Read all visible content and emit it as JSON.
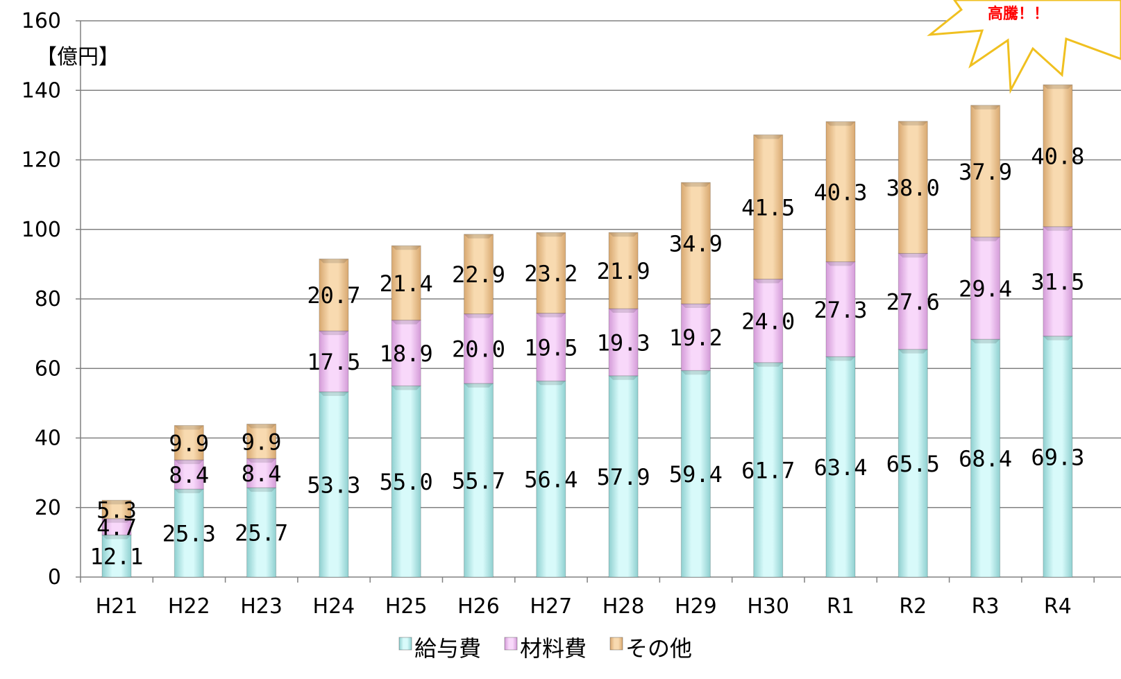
{
  "chart_data": {
    "type": "bar",
    "stacked": true,
    "unit_label": "【億円】",
    "categories": [
      "H21",
      "H22",
      "H23",
      "H24",
      "H25",
      "H26",
      "H27",
      "H28",
      "H29",
      "H30",
      "R1",
      "R2",
      "R3",
      "R4"
    ],
    "series": [
      {
        "name": "給与費",
        "color": "#c8f4f4",
        "values": [
          12.1,
          25.3,
          25.7,
          53.3,
          55.0,
          55.7,
          56.4,
          57.9,
          59.4,
          61.7,
          63.4,
          65.5,
          68.4,
          69.3
        ],
        "labels": [
          "12.1",
          "25.3",
          "25.7",
          "53.3",
          "55.0",
          "55.7",
          "56.4",
          "57.9",
          "59.4",
          "61.7",
          "63.4",
          "65.5",
          "68.4",
          "69.3"
        ]
      },
      {
        "name": "材料費",
        "color": "#f2c8f4",
        "values": [
          4.7,
          8.4,
          8.4,
          17.5,
          18.9,
          20.0,
          19.5,
          19.3,
          19.2,
          24.0,
          27.3,
          27.6,
          29.4,
          31.5
        ],
        "labels": [
          "4.7",
          "8.4",
          "8.4",
          "17.5",
          "18.9",
          "20.0",
          "19.5",
          "19.3",
          "19.2",
          "24.0",
          "27.3",
          "27.6",
          "29.4",
          "31.5"
        ]
      },
      {
        "name": "その他",
        "color": "#f4cc99",
        "values": [
          5.3,
          9.9,
          9.9,
          20.7,
          21.4,
          22.9,
          23.2,
          21.9,
          34.9,
          41.5,
          40.3,
          38.0,
          37.9,
          40.8
        ],
        "labels": [
          "5.3",
          "9.9",
          "9.9",
          "20.7",
          "21.4",
          "22.9",
          "23.2",
          "21.9",
          "34.9",
          "41.5",
          "40.3",
          "38.0",
          "37.9",
          "40.8"
        ]
      }
    ],
    "ylim": [
      0,
      160
    ],
    "yticks": [
      "0",
      "20",
      "40",
      "60",
      "80",
      "100",
      "120",
      "140",
      "160"
    ],
    "grid": true,
    "legend_position": "bottom",
    "annotation": "高騰！！"
  }
}
